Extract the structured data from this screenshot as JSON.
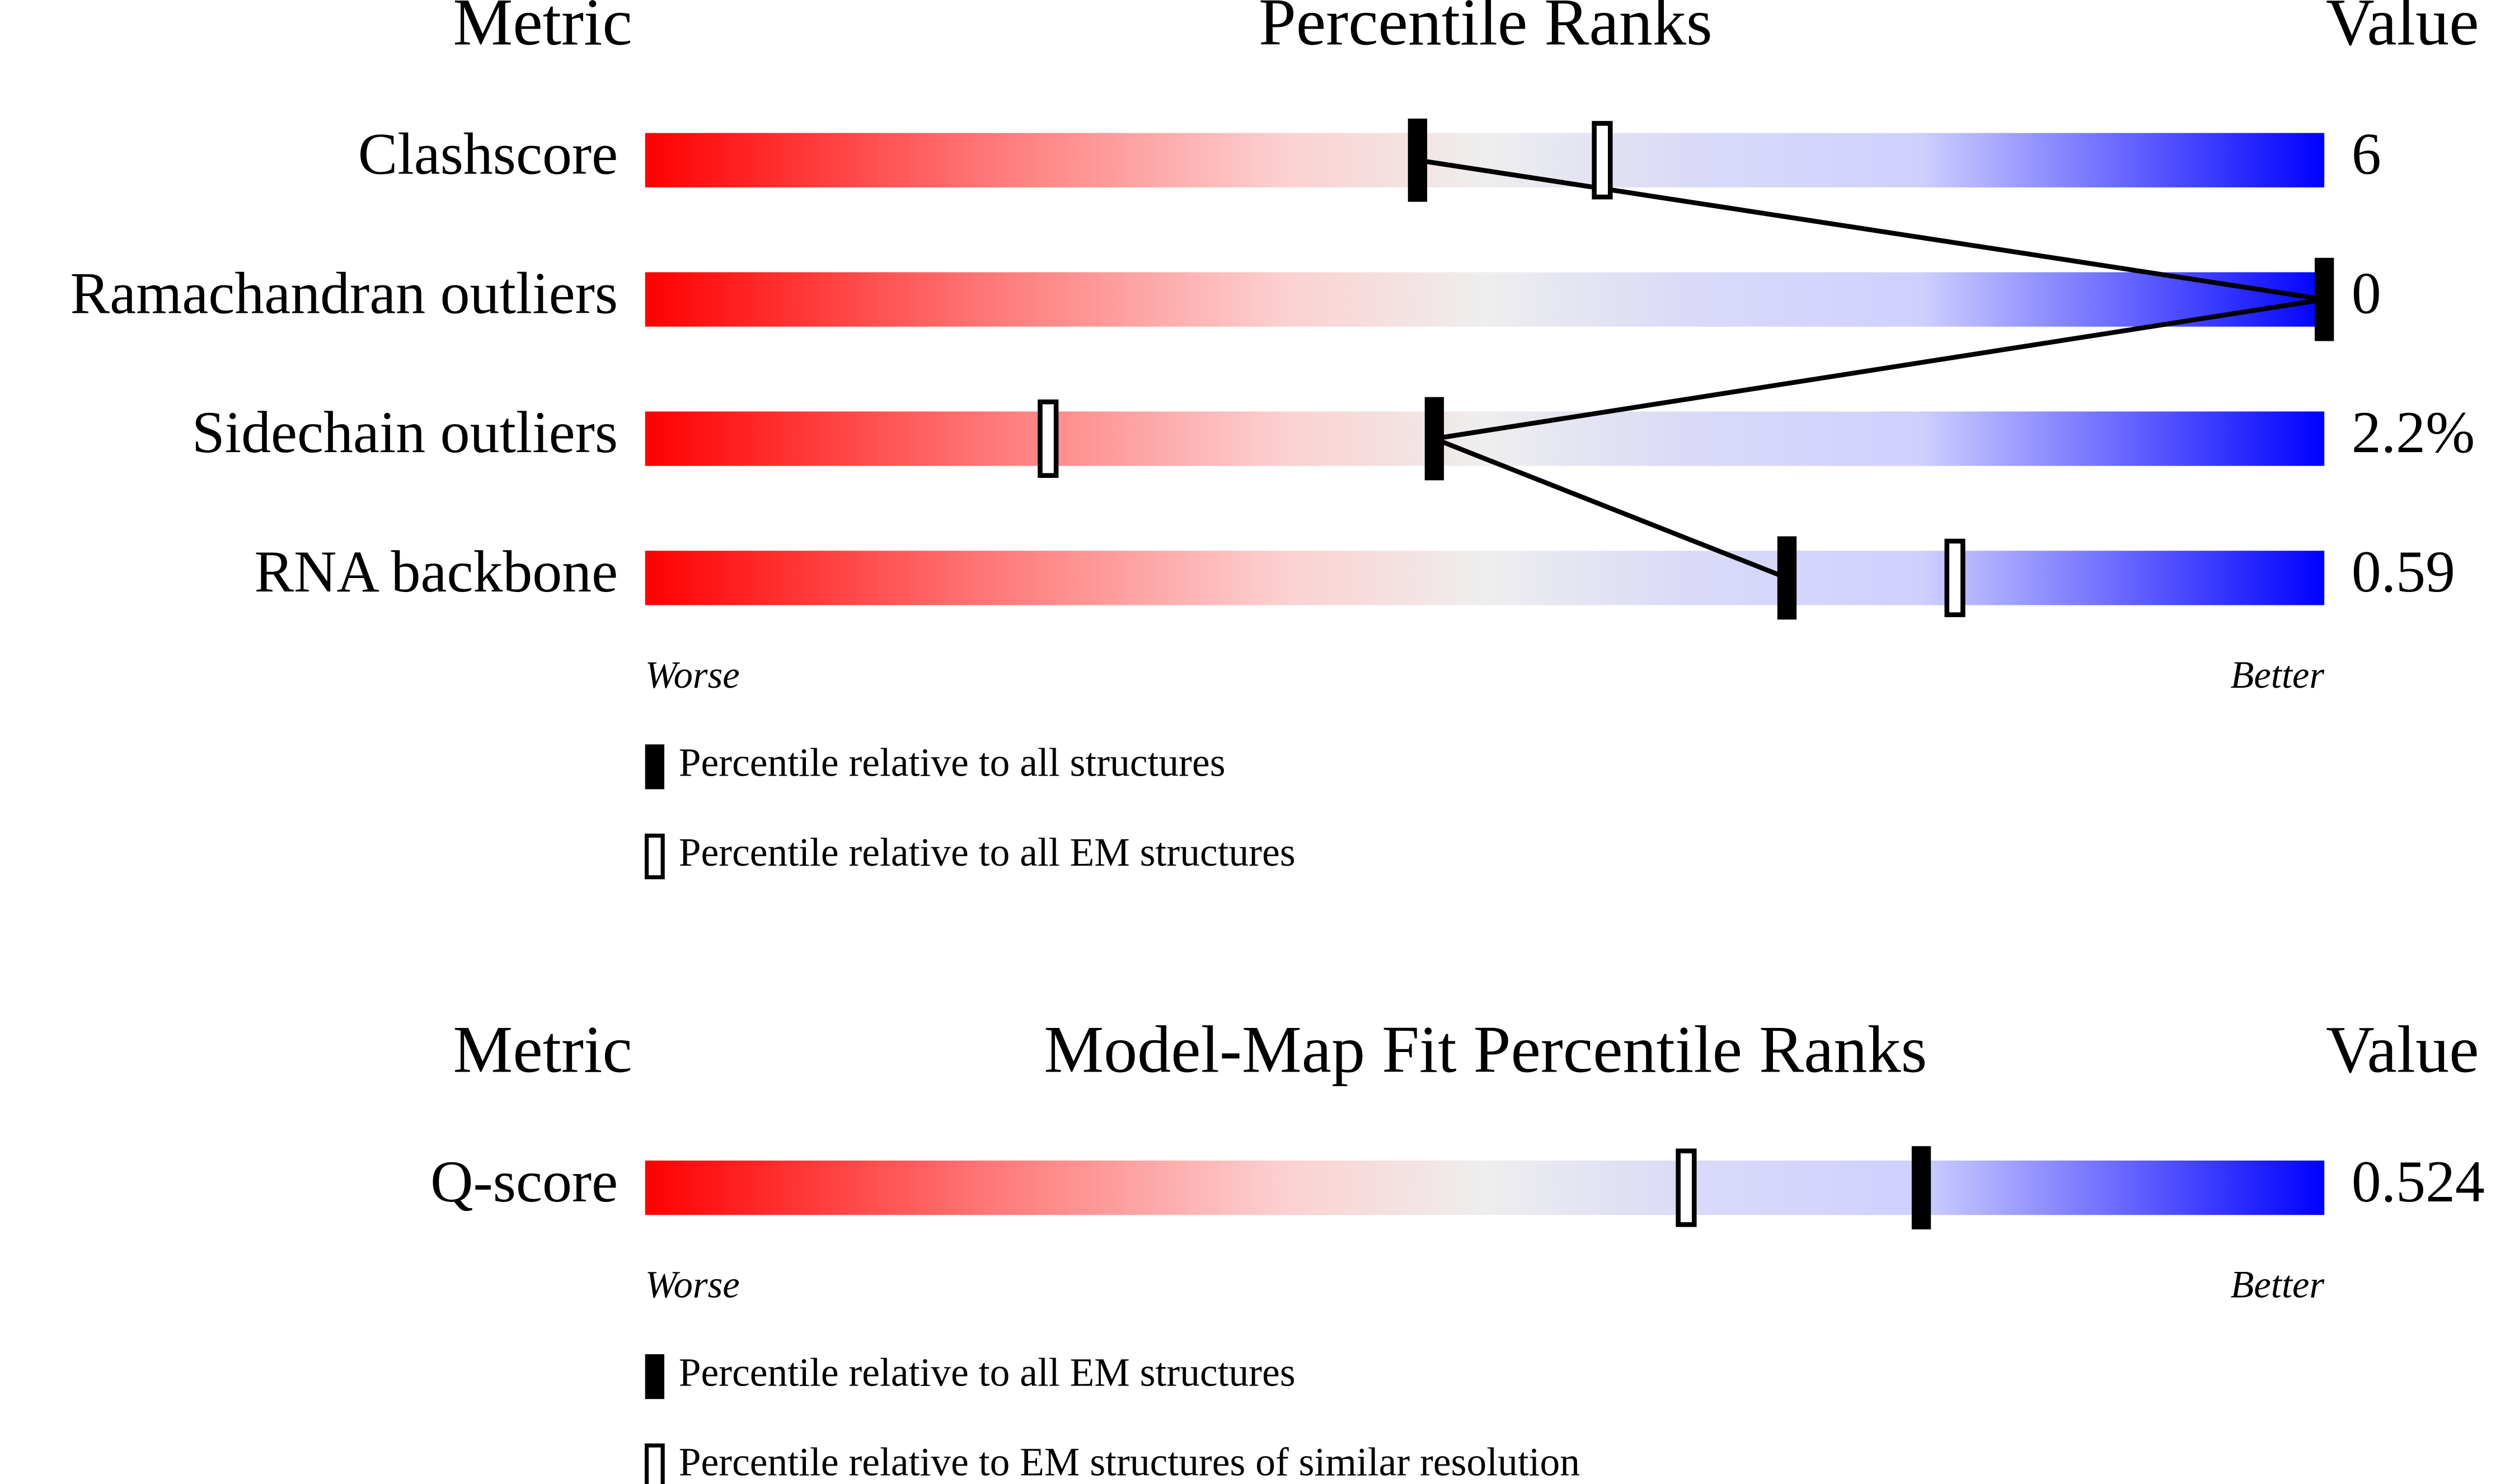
{
  "chart_data": [
    {
      "type": "percentile-slider",
      "title": "Percentile Ranks",
      "metric_header": "Metric",
      "value_header": "Value",
      "categories": [
        "Clashscore",
        "Ramachandran outliers",
        "Sidechain outliers",
        "RNA backbone"
      ],
      "metric_values": [
        6,
        0,
        "2.2%",
        0.59
      ],
      "xlim": [
        0,
        100
      ],
      "worse_label": "Worse",
      "better_label": "Better",
      "connect_filled": true,
      "series": [
        {
          "name": "Percentile relative to all structures",
          "marker": "filled",
          "color": "#000000",
          "values": [
            46,
            100,
            47,
            68
          ]
        },
        {
          "name": "Percentile relative to all EM structures",
          "marker": "open",
          "color": "#000000",
          "values": [
            57,
            null,
            24,
            78
          ]
        }
      ]
    },
    {
      "type": "percentile-slider",
      "title": "Model-Map Fit Percentile Ranks",
      "metric_header": "Metric",
      "value_header": "Value",
      "categories": [
        "Q-score"
      ],
      "metric_values": [
        0.524
      ],
      "xlim": [
        0,
        100
      ],
      "worse_label": "Worse",
      "better_label": "Better",
      "connect_filled": false,
      "series": [
        {
          "name": "Percentile relative to all EM structures",
          "marker": "filled",
          "color": "#000000",
          "values": [
            76
          ]
        },
        {
          "name": "Percentile relative to EM structures of similar resolution",
          "marker": "open",
          "color": "#000000",
          "values": [
            62
          ]
        }
      ]
    }
  ]
}
